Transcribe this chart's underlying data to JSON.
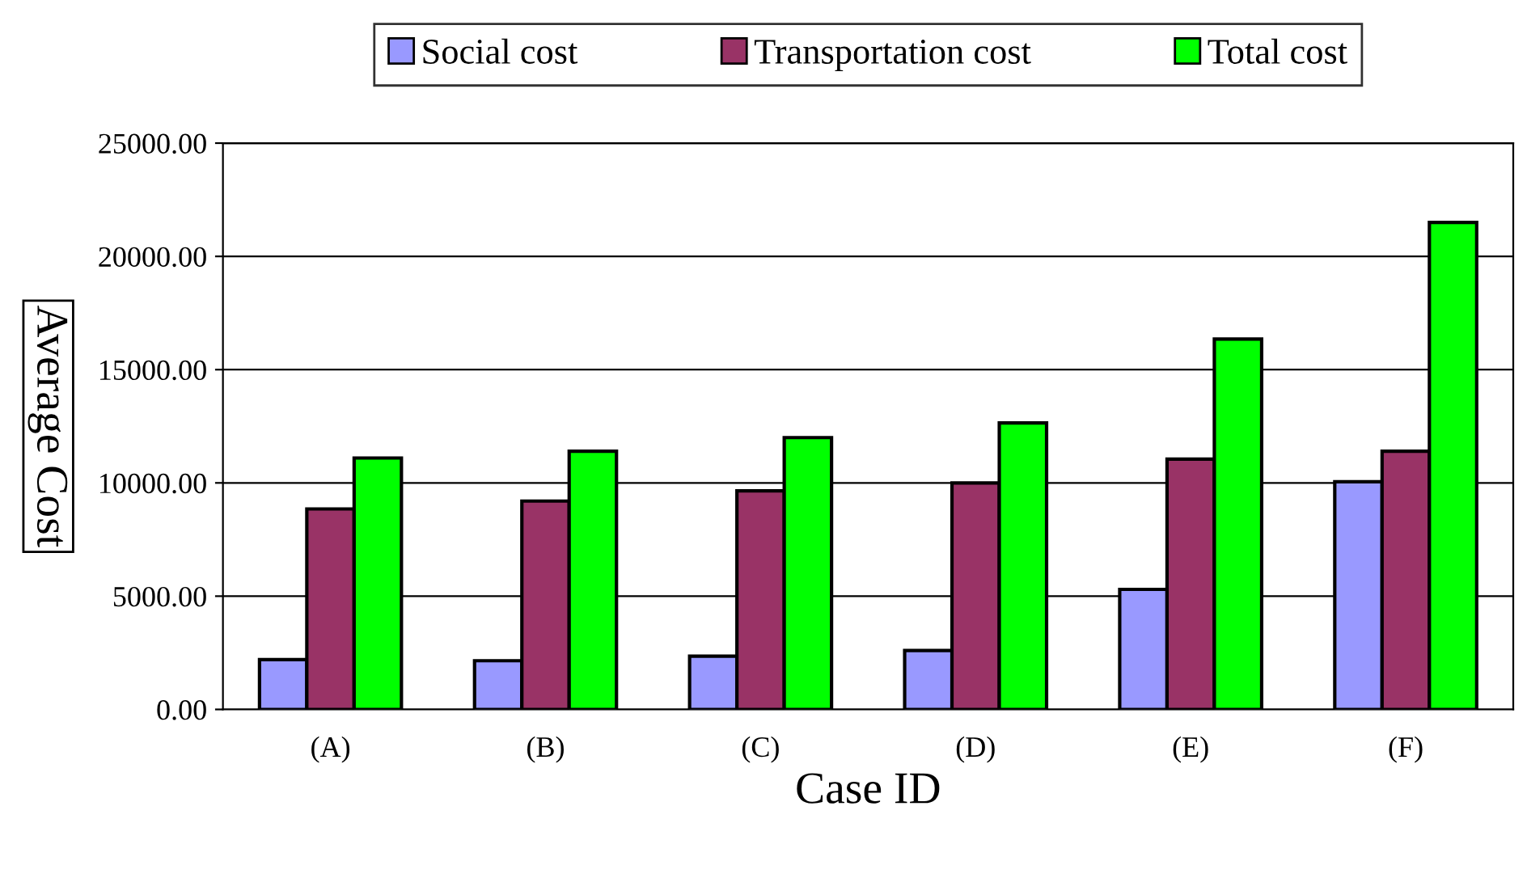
{
  "chart_data": {
    "type": "bar",
    "xlabel": "Case ID",
    "ylabel": "Average Cost",
    "categories": [
      "(A)",
      "(B)",
      "(C)",
      "(D)",
      "(E)",
      "(F)"
    ],
    "series": [
      {
        "name": "Social cost",
        "color": "#9999ff",
        "values": [
          2200,
          2150,
          2350,
          2600,
          5300,
          10050
        ]
      },
      {
        "name": "Transportation cost",
        "color": "#993366",
        "values": [
          8850,
          9200,
          9650,
          10000,
          11050,
          11400
        ]
      },
      {
        "name": "Total cost",
        "color": "#00ff00",
        "values": [
          11100,
          11400,
          12000,
          12650,
          16350,
          21500
        ]
      }
    ],
    "ylim": [
      0,
      25000
    ],
    "yticks": [
      {
        "value": 0,
        "label": "0.00"
      },
      {
        "value": 5000,
        "label": "5000.00"
      },
      {
        "value": 10000,
        "label": "10000.00"
      },
      {
        "value": 15000,
        "label": "15000.00"
      },
      {
        "value": 20000,
        "label": "20000.00"
      },
      {
        "value": 25000,
        "label": "25000.00"
      }
    ],
    "grid": "y",
    "legend": "top"
  }
}
